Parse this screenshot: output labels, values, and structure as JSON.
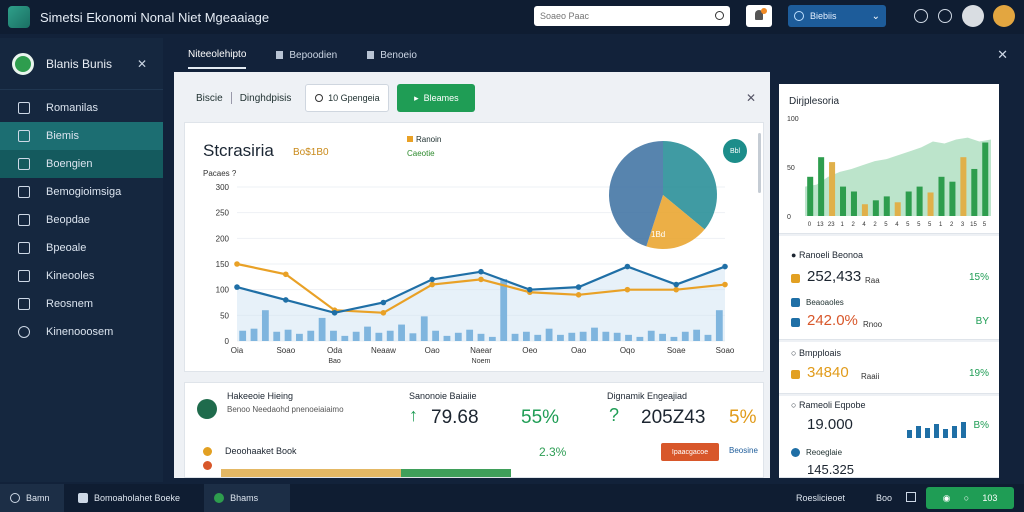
{
  "app": {
    "title": "Simetsi Ekonomi Nonal Niet Mgeaaiage",
    "search_placeholder": "Soaeo Paac",
    "account_label": "Biebiis"
  },
  "sidebar": {
    "user_name": "Blanis Bunis",
    "items": [
      {
        "label": "Romanilas",
        "icon": "home-icon"
      },
      {
        "label": "Biemis",
        "icon": "chat-icon"
      },
      {
        "label": "Boengien",
        "icon": "chart-icon"
      },
      {
        "label": "Bemogioimsiga",
        "icon": "list-icon"
      },
      {
        "label": "Beopdae",
        "icon": "folder-icon"
      },
      {
        "label": "Bpeoale",
        "icon": "user-icon"
      },
      {
        "label": "Kineooles",
        "icon": "filter-icon"
      },
      {
        "label": "Reosnem",
        "icon": "grid-icon"
      },
      {
        "label": "Kinenooosem",
        "icon": "search-icon"
      }
    ]
  },
  "tabs": [
    "Niteeolehipto",
    "Bepoodien",
    "Benoeio"
  ],
  "toolbar": {
    "label_a": "Biscie",
    "label_b": "Dinghdpisis",
    "outline_btn": "10 Gpengeia",
    "green_btn": "Bleames"
  },
  "chart_card": {
    "title": "Stcrasiria",
    "subtitle": "Bo$1B0",
    "legend_a": "Ranoin",
    "legend_b": "Caeotie",
    "ylabel_text": "Pacaes",
    "ylabel_mark": "?",
    "pie_badge": "Bbl",
    "pie_label": "1Bd"
  },
  "chart_data": {
    "type": "bar",
    "ylim": [
      0,
      300
    ],
    "yticks": [
      0,
      50,
      100,
      150,
      200,
      250,
      300
    ],
    "ytick_labels": [
      "0",
      "50",
      "100",
      "150",
      "200",
      "250",
      "300"
    ],
    "x_labels": [
      "Oia",
      "Soao",
      "Oda",
      "Neaaw",
      "Oao",
      "Naear",
      "Oeo",
      "Oao",
      "Oqo",
      "Soae",
      "Soao"
    ],
    "x_sublabels": [
      "",
      "",
      "Bao",
      "",
      "",
      "Noem",
      "",
      "",
      "",
      "",
      ""
    ],
    "bars": [
      20,
      24,
      60,
      18,
      22,
      14,
      20,
      45,
      20,
      10,
      18,
      28,
      16,
      20,
      32,
      15,
      48,
      20,
      10,
      16,
      22,
      14,
      8,
      120,
      14,
      18,
      12,
      24,
      12,
      16,
      18,
      26,
      18,
      16,
      12,
      8,
      20,
      14,
      8,
      18,
      22,
      12,
      60
    ],
    "series": [
      {
        "name": "Ranoin",
        "color": "#e9a126",
        "values": [
          150,
          130,
          60,
          55,
          110,
          120,
          95,
          90,
          100,
          100,
          110
        ]
      },
      {
        "name": "Caeotie",
        "color": "#1f6fa6",
        "values": [
          105,
          80,
          55,
          75,
          120,
          135,
          100,
          105,
          145,
          110,
          145
        ]
      }
    ]
  },
  "stats": {
    "person_name": "Hakeeoie Hieing",
    "person_desc": "Benoo Needaohd pnenoeiaiaimo",
    "col1_head": "Sanonoie Baiaiie",
    "col1_value": "79.68",
    "col1_pct": "55%",
    "col2_head": "Dignamik Engeajiad",
    "col2_value": "205Z43",
    "col2_pct": "5%",
    "book_label": "Deoohaaket Book",
    "book_pct": "2.3%",
    "action_btn": "Ipaacgacoe",
    "link": "Beosine",
    "progress": 0.62
  },
  "right": {
    "chart_title": "Dirjplesoria",
    "mini_chart": {
      "yticks": [
        "0",
        "50",
        "100"
      ],
      "xticks": [
        "0",
        "13",
        "23",
        "1",
        "2",
        "4",
        "2",
        "5",
        "4",
        "5",
        "5",
        "5",
        "1",
        "2",
        "3",
        "15",
        "5"
      ],
      "values": [
        40,
        60,
        55,
        30,
        25,
        12,
        16,
        20,
        14,
        25,
        30,
        24,
        40,
        35,
        60,
        48,
        75
      ],
      "area": [
        30,
        32,
        40,
        45,
        48,
        52,
        56,
        58,
        62,
        66,
        70,
        76,
        74,
        78,
        80,
        76,
        78
      ]
    },
    "sec1_title": "Ranoeli Beonoa",
    "sec1_value": "252,433",
    "sec1_small": "Raa",
    "sec1_pct": "15%",
    "sec1_line2": "Beaoaoles",
    "sec1_value2": "242.0%",
    "sec1_small2": "Rnoo",
    "sec1_pct2": "BY",
    "sec2_title": "Bmpploais",
    "sec2_value": "34840",
    "sec2_small": "Raaii",
    "sec2_pct": "19%",
    "sec3_title": "Rameoli Eqpobe",
    "sec3_value": "19.000",
    "sec3_pct": "B%",
    "sec3_line2": "Reoeglaie",
    "sec3_value2": "145.325"
  },
  "bottom": {
    "item1": "Bamn",
    "item2": "Bomoaholahet Boeke",
    "item3": "Bhams",
    "right_text": "Roeslicieoet",
    "right_text2": "Boo",
    "ok_num": "103"
  }
}
